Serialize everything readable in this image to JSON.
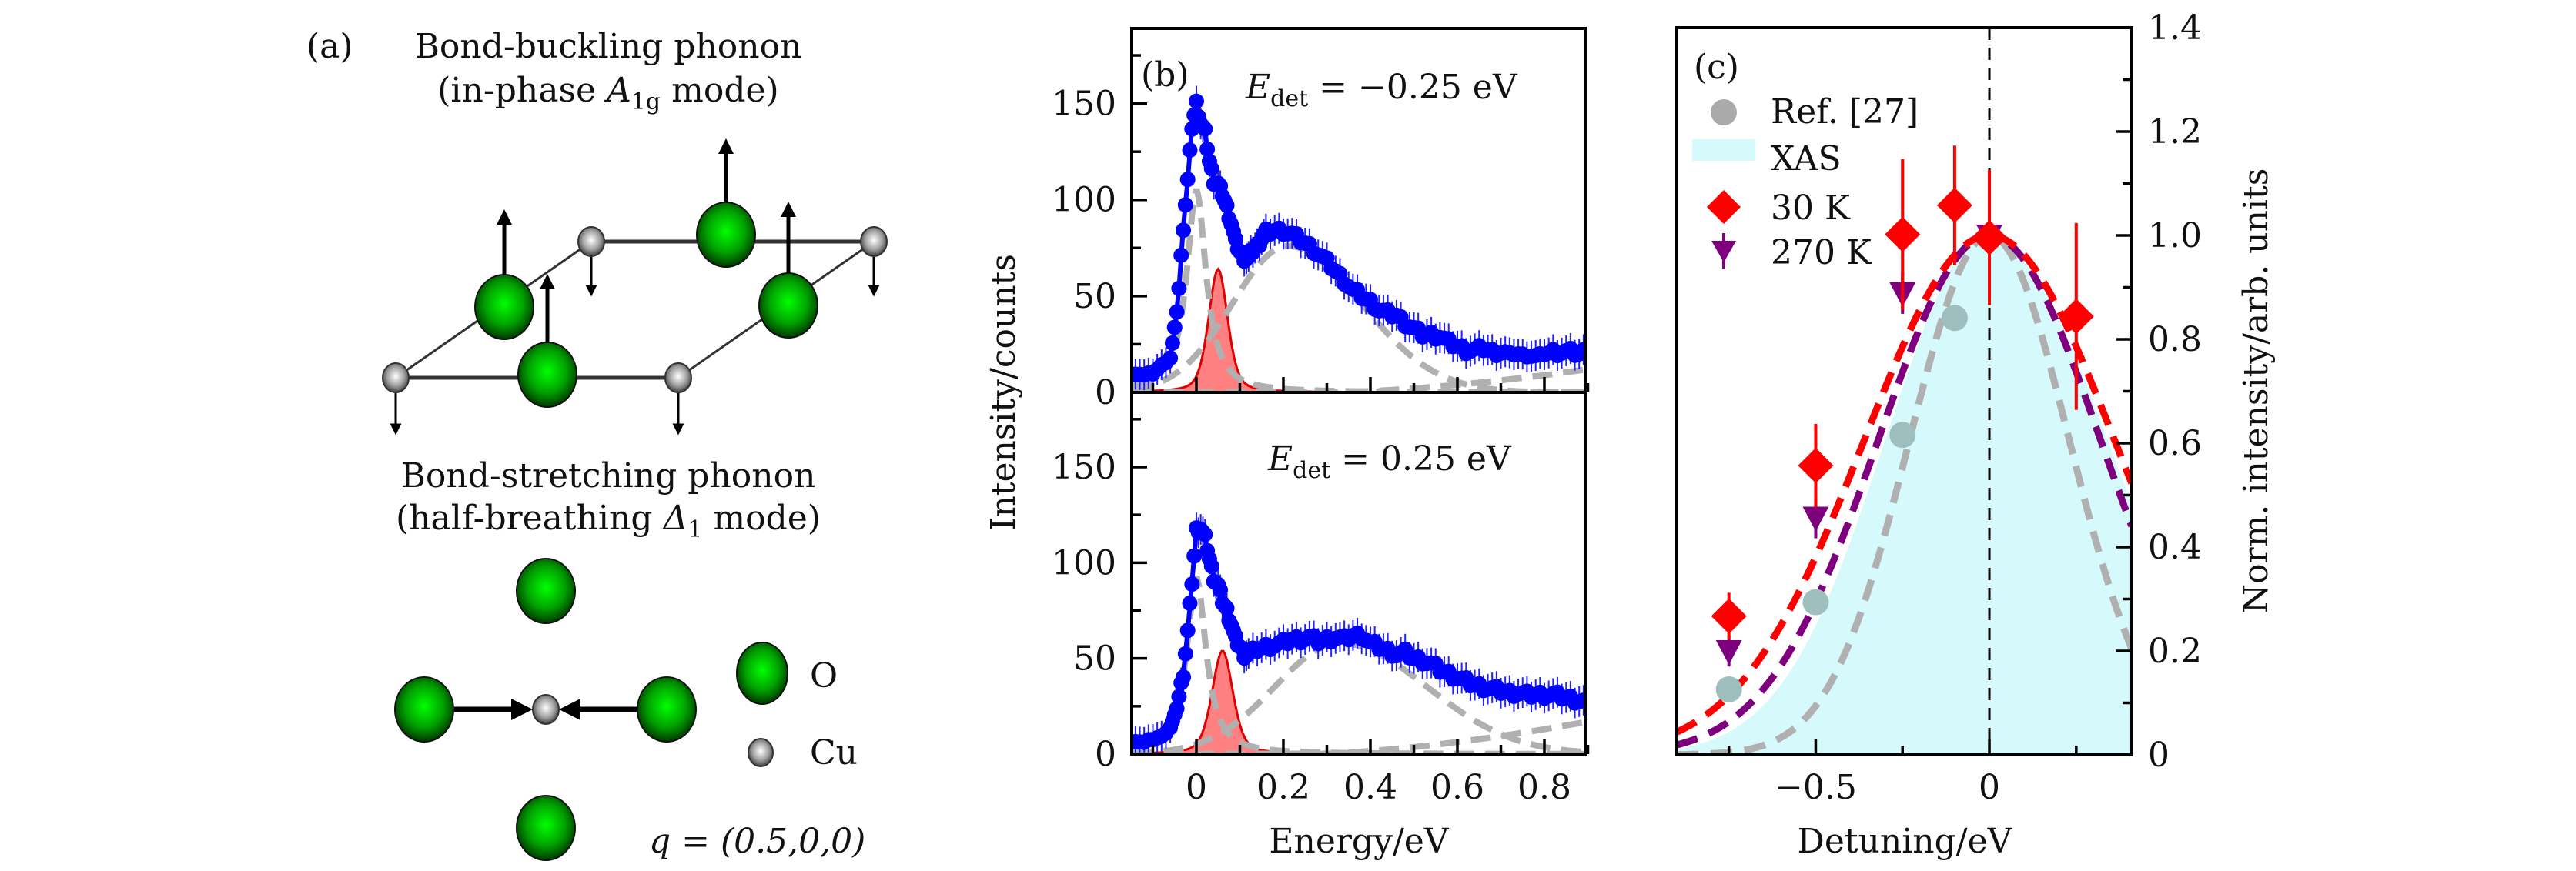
{
  "figure": {
    "panel_a": {
      "label": "(a)",
      "buckling_title_line1": "Bond-buckling phonon",
      "buckling_title_line2_pre": "(in-phase ",
      "buckling_title_line2_sym": "A",
      "buckling_title_line2_sub": "1g",
      "buckling_title_line2_post": " mode)",
      "stretching_title_line1": "Bond-stretching phonon",
      "stretching_title_line2_pre": "(half-breathing ",
      "stretching_title_line2_sym": "Δ",
      "stretching_title_line2_sub": "1",
      "stretching_title_line2_post": " mode)",
      "legend_o": "O",
      "legend_cu": "Cu",
      "q_label": "q = (0.5,0,0)",
      "colors": {
        "oxygen": "#00c800",
        "copper": "#b0b0b0"
      }
    }
  },
  "chart_data": [
    {
      "type": "line",
      "panel": "(b) top",
      "label": "(b)",
      "annotation": "E_det = −0.25 eV",
      "annotation_sym": "E",
      "annotation_sub": "det",
      "annotation_rest": " = −0.25 eV",
      "xlabel": "Energy/eV",
      "ylabel": "Intensity/counts",
      "xlim": [
        -0.146,
        0.9
      ],
      "ylim": [
        0,
        189
      ],
      "xticks": [
        0,
        0.2,
        0.4,
        0.6,
        0.8
      ],
      "xtick_labels": [
        "0",
        "0.2",
        "0.4",
        "0.6",
        "0.8"
      ],
      "yticks": [
        0,
        50,
        100,
        150
      ],
      "ytick_labels": [
        "0",
        "50",
        "100",
        "150"
      ],
      "series": [
        {
          "name": "data",
          "style": "blue markers with error bars",
          "color": "#0000ff",
          "x": [
            -0.14,
            -0.12,
            -0.1,
            -0.08,
            -0.06,
            -0.05,
            -0.04,
            -0.03,
            -0.02,
            -0.01,
            0.0,
            0.01,
            0.02,
            0.03,
            0.04,
            0.05,
            0.06,
            0.07,
            0.08,
            0.09,
            0.1,
            0.11,
            0.12,
            0.13,
            0.14,
            0.15,
            0.16,
            0.18,
            0.2,
            0.22,
            0.24,
            0.26,
            0.28,
            0.3,
            0.32,
            0.34,
            0.36,
            0.38,
            0.4,
            0.42,
            0.44,
            0.46,
            0.48,
            0.5,
            0.52,
            0.54,
            0.56,
            0.58,
            0.6,
            0.62,
            0.64,
            0.66,
            0.68,
            0.7,
            0.72,
            0.74,
            0.76,
            0.78,
            0.8,
            0.82,
            0.84,
            0.86,
            0.88,
            0.9
          ],
          "y": [
            10,
            9,
            10,
            14,
            18,
            32,
            54,
            86,
            110,
            138,
            150,
            140,
            135,
            120,
            110,
            108,
            103,
            96,
            88,
            78,
            73,
            70,
            70,
            74,
            76,
            80,
            83,
            84,
            84,
            82,
            79,
            76,
            72,
            68,
            63,
            58,
            53,
            50,
            47,
            43,
            41,
            40,
            36,
            33,
            30,
            30,
            29,
            26,
            24,
            22,
            22,
            23,
            21,
            21,
            20,
            20,
            19,
            19,
            20,
            21,
            21,
            21,
            20,
            22
          ],
          "err": 8
        },
        {
          "name": "total fit",
          "style": "solid blue line",
          "color": "#0000ff"
        },
        {
          "name": "elastic",
          "style": "grey dashed",
          "color": "#b0b0b0",
          "center": 0.0,
          "amplitude": 105,
          "width": 0.03
        },
        {
          "name": "phonon",
          "style": "red filled",
          "color": "#ff6b6b",
          "center": 0.05,
          "amplitude": 64,
          "width": 0.022
        },
        {
          "name": "broad",
          "style": "grey dashed",
          "color": "#b0b0b0",
          "center": 0.21,
          "amplitude": 76,
          "width": 0.17
        },
        {
          "name": "background",
          "style": "grey dashed",
          "color": "#b0b0b0",
          "start": 0.3,
          "end_value": 12
        }
      ]
    },
    {
      "type": "line",
      "panel": "(b) bottom",
      "annotation": "E_det = 0.25 eV",
      "annotation_sym": "E",
      "annotation_sub": "det",
      "annotation_rest": " = 0.25 eV",
      "xlabel": "Energy/eV",
      "ylabel": "Intensity/counts",
      "xlim": [
        -0.146,
        0.9
      ],
      "ylim": [
        0,
        189
      ],
      "xticks": [
        0,
        0.2,
        0.4,
        0.6,
        0.8
      ],
      "xtick_labels": [
        "0",
        "0.2",
        "0.4",
        "0.6",
        "0.8"
      ],
      "yticks": [
        0,
        50,
        100,
        150
      ],
      "ytick_labels": [
        "0",
        "50",
        "100",
        "150"
      ],
      "series": [
        {
          "name": "data",
          "style": "blue markers with error bars",
          "color": "#0000ff",
          "x": [
            -0.14,
            -0.12,
            -0.1,
            -0.08,
            -0.06,
            -0.05,
            -0.04,
            -0.03,
            -0.02,
            -0.01,
            0.0,
            0.01,
            0.02,
            0.03,
            0.04,
            0.05,
            0.06,
            0.07,
            0.08,
            0.09,
            0.1,
            0.11,
            0.12,
            0.14,
            0.16,
            0.18,
            0.2,
            0.22,
            0.24,
            0.26,
            0.28,
            0.3,
            0.32,
            0.34,
            0.36,
            0.38,
            0.4,
            0.42,
            0.44,
            0.46,
            0.48,
            0.5,
            0.52,
            0.54,
            0.56,
            0.58,
            0.6,
            0.62,
            0.64,
            0.66,
            0.68,
            0.7,
            0.72,
            0.74,
            0.76,
            0.78,
            0.8,
            0.82,
            0.84,
            0.86,
            0.88,
            0.9
          ],
          "y": [
            7,
            6,
            8,
            9,
            14,
            20,
            30,
            42,
            64,
            90,
            117,
            118,
            113,
            102,
            92,
            88,
            80,
            75,
            68,
            60,
            56,
            52,
            52,
            55,
            56,
            57,
            58,
            60,
            60,
            61,
            59,
            60,
            61,
            60,
            62,
            62,
            58,
            56,
            54,
            52,
            53,
            50,
            49,
            47,
            44,
            42,
            40,
            38,
            36,
            35,
            34,
            33,
            32,
            32,
            31,
            31,
            31,
            31,
            30,
            29,
            28,
            27
          ],
          "err": 8
        },
        {
          "name": "total fit",
          "style": "solid blue line",
          "color": "#0000ff"
        },
        {
          "name": "elastic",
          "style": "grey dashed",
          "color": "#b0b0b0",
          "center": 0.0,
          "amplitude": 92,
          "width": 0.03
        },
        {
          "name": "phonon",
          "style": "red filled",
          "color": "#ff6b6b",
          "center": 0.06,
          "amplitude": 54,
          "width": 0.024
        },
        {
          "name": "broad",
          "style": "grey dashed",
          "color": "#b0b0b0",
          "center": 0.33,
          "amplitude": 58,
          "width": 0.2
        },
        {
          "name": "background",
          "style": "grey dashed",
          "color": "#b0b0b0",
          "start": 0.25,
          "end_value": 17
        }
      ]
    },
    {
      "type": "scatter",
      "panel": "(c)",
      "label": "(c)",
      "xlabel": "Detuning/eV",
      "ylabel": "Norm. intensity/arb. units",
      "xlim": [
        -0.9,
        0.41
      ],
      "ylim": [
        0,
        1.4
      ],
      "xticks": [
        -0.5,
        0
      ],
      "xtick_labels": [
        "−0.5",
        "0"
      ],
      "yticks": [
        0,
        0.2,
        0.4,
        0.6,
        0.8,
        1.0,
        1.2,
        1.4
      ],
      "ytick_labels": [
        "0",
        "0.2",
        "0.4",
        "0.6",
        "0.8",
        "1.0",
        "1.2",
        "1.4"
      ],
      "vline_x": 0,
      "legend": [
        {
          "label": "Ref. [27]",
          "marker": "circle",
          "color": "#aaaaaa"
        },
        {
          "label": "XAS",
          "marker": "area",
          "color": "#d6f9fb"
        },
        {
          "label": "30 K",
          "marker": "diamond",
          "color": "#ff0000"
        },
        {
          "label": "270 K",
          "marker": "triangle-down",
          "color": "#7f007f"
        }
      ],
      "series": [
        {
          "name": "Ref. [27]",
          "x": [
            -0.75,
            -0.5,
            -0.25,
            -0.1,
            0
          ],
          "y": [
            0.126,
            0.294,
            0.616,
            0.841,
            0.996
          ]
        },
        {
          "name": "30 K",
          "x": [
            -0.75,
            -0.5,
            -0.25,
            -0.1,
            0,
            0.25
          ],
          "y": [
            0.267,
            0.557,
            1.002,
            1.058,
            0.996,
            0.844
          ],
          "err": [
            0.045,
            0.08,
            0.145,
            0.115,
            0.13,
            0.18
          ]
        },
        {
          "name": "270 K",
          "x": [
            -0.75,
            -0.5,
            -0.25,
            0
          ],
          "y": [
            0.2,
            0.457,
            0.889,
            1.0
          ],
          "err": [
            0.03,
            0.04,
            0.04,
            0.03
          ]
        },
        {
          "name": "30 K fit",
          "style": "red dashed",
          "center": 0.0,
          "amplitude": 1.0,
          "sigma": 0.36
        },
        {
          "name": "270 K fit",
          "style": "purple dashed",
          "center": 0.0,
          "amplitude": 1.0,
          "sigma": 0.32
        },
        {
          "name": "Ref. [27] fit",
          "style": "grey dashed",
          "center": 0.0,
          "amplitude": 1.0,
          "sigma": 0.23
        },
        {
          "name": "XAS",
          "style": "cyan area",
          "center": 0.0,
          "amplitude": 1.0,
          "sigma_left": 0.3,
          "sigma_right": 0.34
        }
      ]
    }
  ]
}
